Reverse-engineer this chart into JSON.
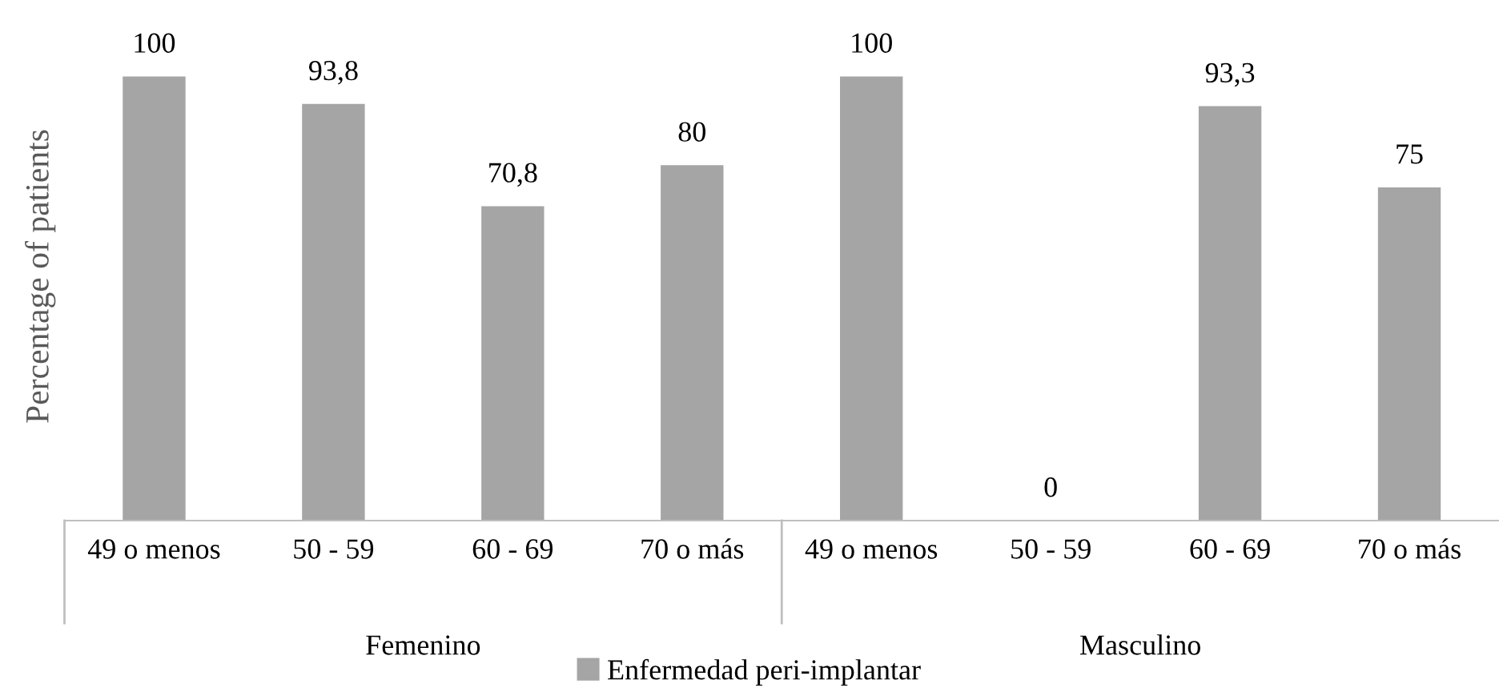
{
  "chart_data": {
    "type": "bar",
    "ylabel": "Percentage of patients",
    "categories": [
      "49 o menos",
      "50 - 59",
      "60 - 69",
      "70 o más",
      "49 o menos",
      "50 - 59",
      "60 - 69",
      "70 o más"
    ],
    "series": [
      {
        "name": "Enfermedad peri-implantar",
        "color": "#a5a5a5",
        "values": [
          100,
          93.8,
          70.8,
          80,
          100,
          0,
          93.3,
          75
        ],
        "value_labels": [
          "100",
          "93,8",
          "70,8",
          "80",
          "100",
          "0",
          "93,3",
          "75"
        ]
      }
    ],
    "annotations": [
      "Femenino",
      "Masculino"
    ],
    "legend": "bottom",
    "grid": false
  }
}
